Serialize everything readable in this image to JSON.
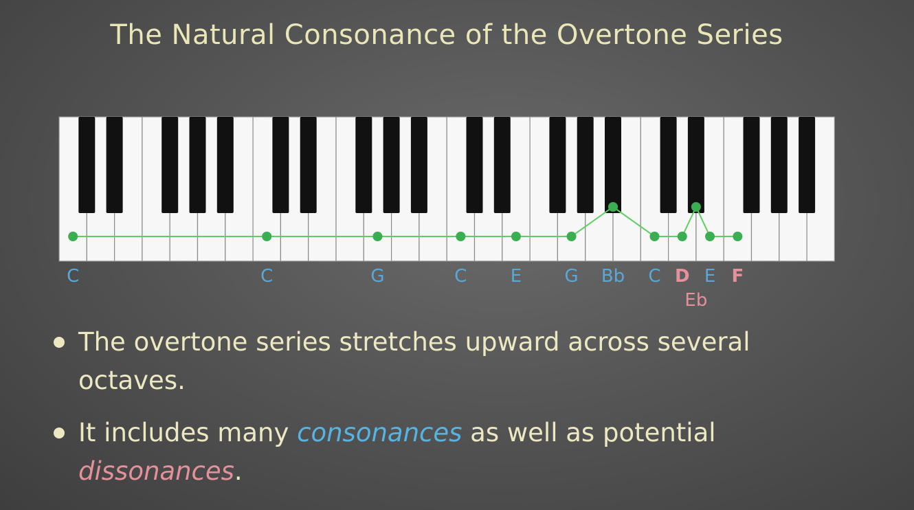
{
  "title": "The Natural Consonance of the Overtone Series",
  "colors": {
    "consonant": "#5aa8d6",
    "dissonant": "#e4919c",
    "dot": "#3cae52",
    "line": "#5fcf63"
  },
  "diagram": {
    "white_keys": 28,
    "overtone_notes": [
      {
        "label": "C",
        "key_index": 0,
        "black": false,
        "type": "consonant"
      },
      {
        "label": "C",
        "key_index": 7,
        "black": false,
        "type": "consonant"
      },
      {
        "label": "G",
        "key_index": 11,
        "black": false,
        "type": "consonant"
      },
      {
        "label": "C",
        "key_index": 14,
        "black": false,
        "type": "consonant"
      },
      {
        "label": "E",
        "key_index": 16,
        "black": false,
        "type": "consonant"
      },
      {
        "label": "G",
        "key_index": 18,
        "black": false,
        "type": "consonant"
      },
      {
        "label": "Bb",
        "key_index": 19,
        "black": true,
        "type": "consonant"
      },
      {
        "label": "C",
        "key_index": 21,
        "black": false,
        "type": "consonant"
      },
      {
        "label": "D",
        "key_index": 22,
        "black": false,
        "type": "dissonant"
      },
      {
        "label": "Eb",
        "key_index": 22,
        "black": true,
        "type": "dissonant"
      },
      {
        "label": "E",
        "key_index": 23,
        "black": false,
        "type": "consonant"
      },
      {
        "label": "F",
        "key_index": 24,
        "black": false,
        "type": "dissonant"
      }
    ]
  },
  "bullets": [
    {
      "text": "The overtone series stretches upward across several octaves."
    },
    {
      "text_a": "It includes many ",
      "consonance_word": "consonances",
      "text_b": " as well as potential ",
      "dissonance_word": "dissonances",
      "text_c": "."
    }
  ]
}
